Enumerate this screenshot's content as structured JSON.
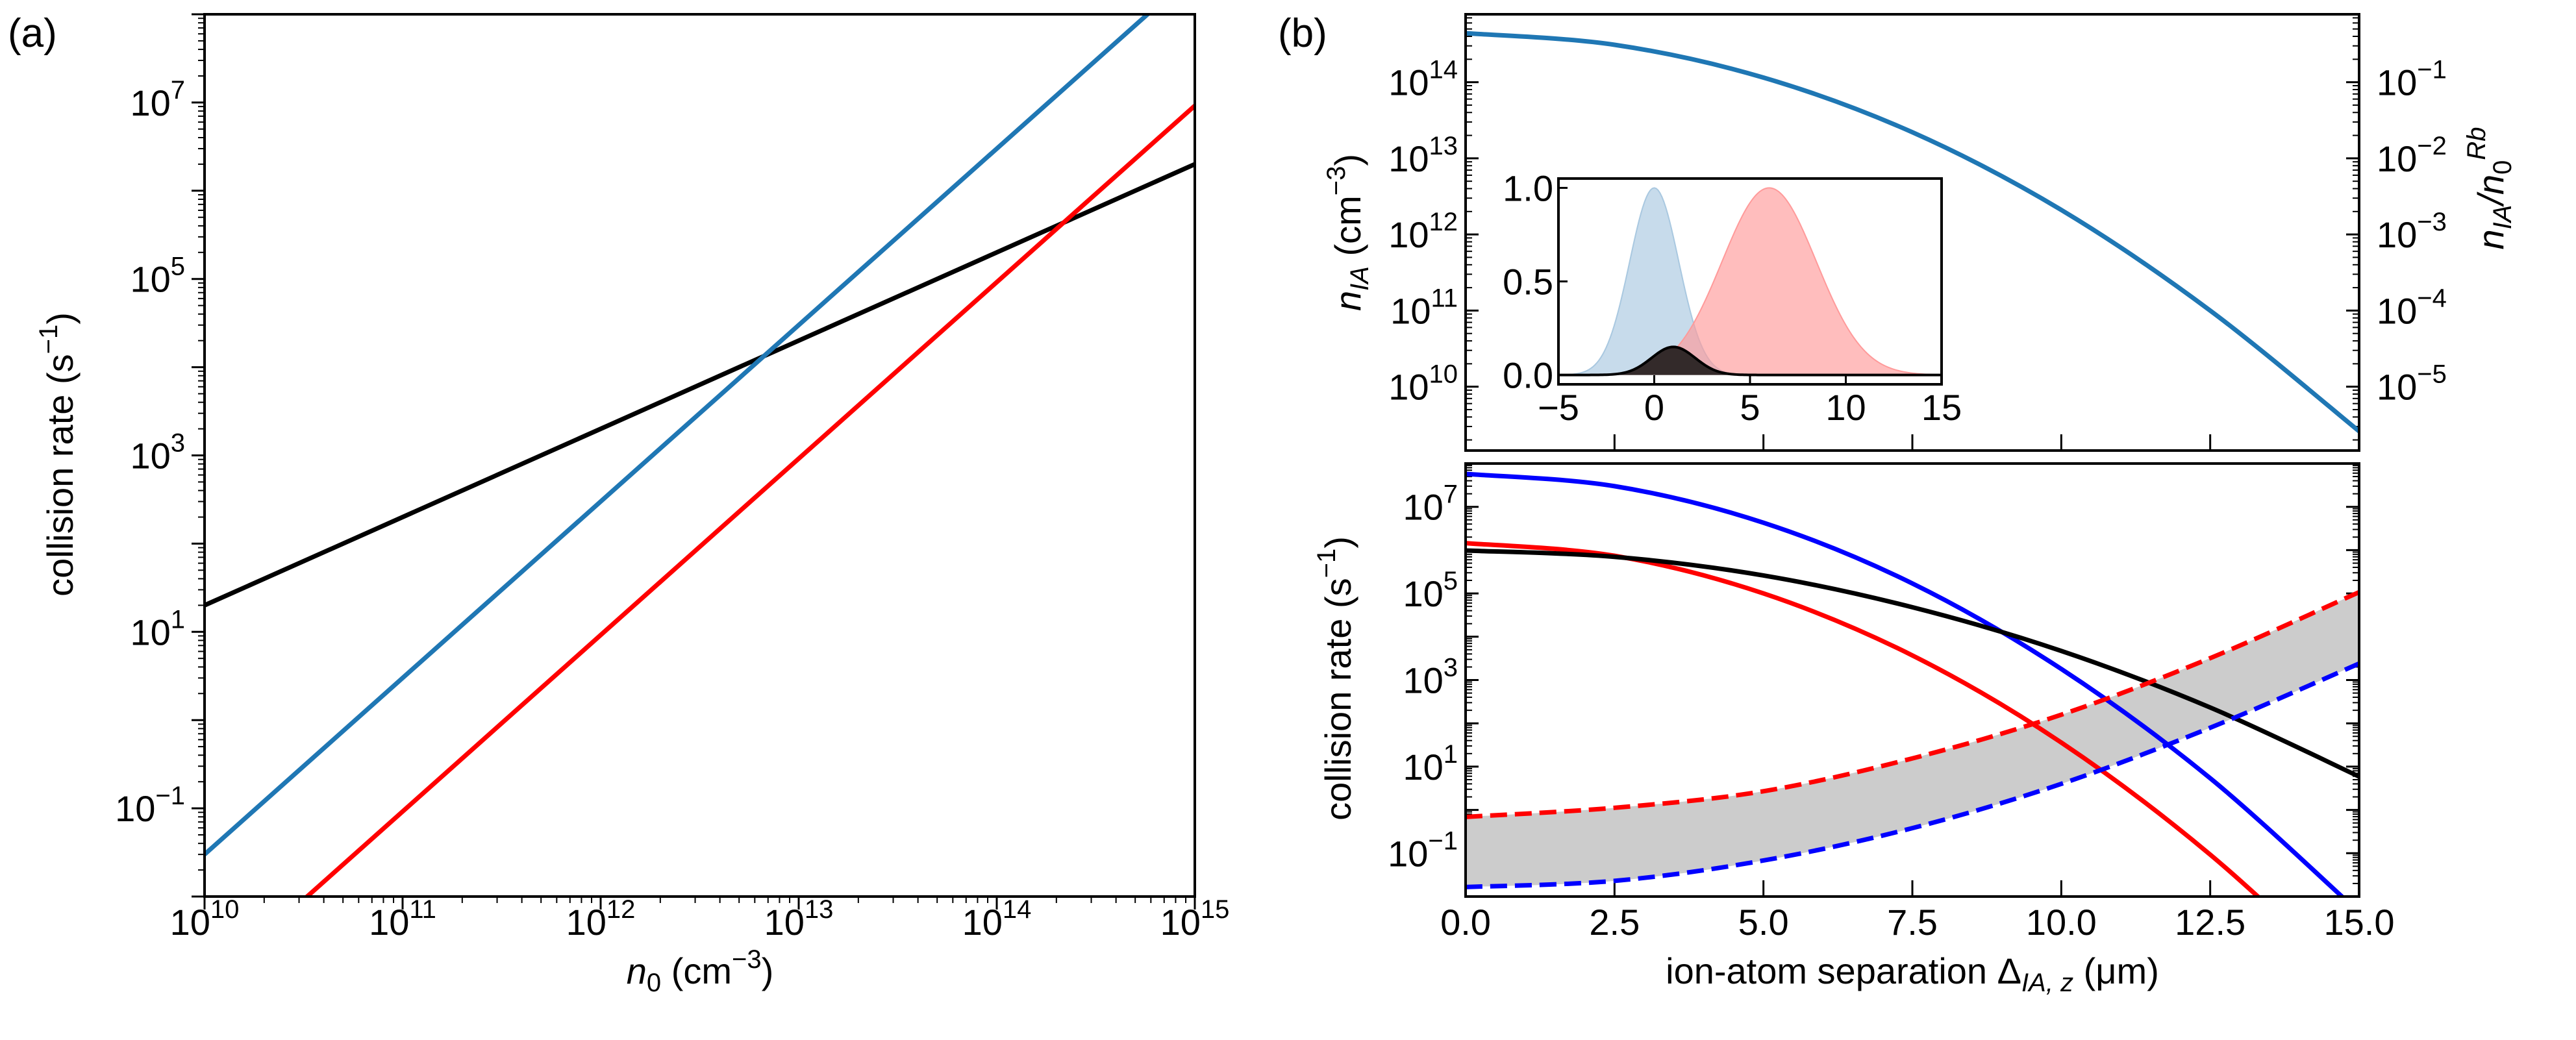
{
  "panel_labels": {
    "a": "(a)",
    "b": "(b)"
  },
  "labels": {
    "a_xlabel": [
      "n",
      "0",
      " (cm",
      "−3",
      ")"
    ],
    "a_ylabel": [
      "collision rate (s",
      "−1",
      ")"
    ],
    "b_top_ylabel": [
      "n",
      "IA",
      " (cm",
      "−3",
      ")"
    ],
    "b_top_ylabel_right": [
      "n",
      "IA",
      "/n",
      "0",
      "Rb"
    ],
    "b_bottom_ylabel": [
      "collision rate (s",
      "−1",
      ")"
    ],
    "b_bottom_xlabel": [
      "ion-atom separation Δ",
      "IA, z",
      "  (μm)"
    ]
  },
  "chart_data": [
    {
      "id": "a",
      "type": "line",
      "title": "",
      "xlabel": "n0 (cm−3)",
      "ylabel": "collision rate (s−1)",
      "xscale": "log",
      "yscale": "log",
      "xlim": [
        10000000000.0,
        1000000000000000.0
      ],
      "ylim": [
        0.01,
        100000000.0
      ],
      "xtick_exponents": [
        10,
        11,
        12,
        13,
        14,
        15
      ],
      "ytick_exponents": [
        -1,
        1,
        3,
        5,
        7
      ],
      "series": [
        {
          "name": "black",
          "color": "#000000",
          "x": [
            10000000000.0,
            1000000000000000.0
          ],
          "y": [
            20,
            2000000.0
          ]
        },
        {
          "name": "blue",
          "color": "#1f77b4",
          "x": [
            10000000000.0,
            1000000000000000.0
          ],
          "y": [
            0.03,
            300000000.0
          ]
        },
        {
          "name": "red",
          "color": "#ff0000",
          "x": [
            10000000000.0,
            1000000000000000.0
          ],
          "y": [
            0.00092,
            9200000.0
          ]
        }
      ]
    },
    {
      "id": "b_top",
      "type": "line",
      "ylabel": "n_IA (cm−3)",
      "ylabel_right": "n_IA/n0^Rb",
      "xscale": "linear",
      "yscale": "log",
      "xlim": [
        0,
        15
      ],
      "ylim": [
        1450000000.0,
        780000000000000.0
      ],
      "ytick_exponents": [
        10,
        11,
        12,
        13,
        14
      ],
      "ytick_right_exponents": [
        -5,
        -4,
        -3,
        -2,
        -1
      ],
      "right_axis_scale": 1e-15,
      "xticks": [
        2.5,
        5,
        7.5,
        10,
        12.5
      ],
      "series": [
        {
          "name": "n_IA",
          "color": "#1f77b4",
          "x": [
            0,
            2.5,
            5,
            7.5,
            10,
            12.5,
            15
          ],
          "y": [
            440000000000000.0,
            310000000000000.0,
            115000000000000.0,
            22000000000000.0,
            2100000000000.0,
            100000000000.0,
            2600000000.0
          ]
        }
      ],
      "inset": {
        "type": "area",
        "xlim": [
          -5,
          15
        ],
        "ylim": [
          -0.05,
          1.05
        ],
        "xticks": [
          -5,
          0,
          5,
          10,
          15
        ],
        "yticks": [
          "0.0",
          "0.5",
          "1.0"
        ],
        "series": [
          {
            "name": "ion",
            "color": "#a9c8e0",
            "center": 0,
            "sigma": 1.28,
            "amplitude": 1.0
          },
          {
            "name": "atom",
            "color": "#ff9a9a",
            "center": 6,
            "sigma": 2.46,
            "amplitude": 1.0
          },
          {
            "name": "overlap",
            "color": "#332a2a",
            "center": 1.0,
            "sigma": 1.14,
            "amplitude": 0.15
          }
        ]
      }
    },
    {
      "id": "b_bottom",
      "type": "line",
      "xlabel": "ion-atom separation Δ_IA,z (μm)",
      "ylabel": "collision rate (s−1)",
      "xscale": "linear",
      "yscale": "log",
      "xlim": [
        0,
        15
      ],
      "ylim": [
        0.01,
        100000000.0
      ],
      "xticks": [
        "0.0",
        "2.5",
        "5.0",
        "7.5",
        "10.0",
        "12.5",
        "15.0"
      ],
      "ytick_exponents": [
        -1,
        1,
        3,
        5,
        7
      ],
      "x": [
        0,
        2.5,
        5,
        7.5,
        10,
        12.5,
        15
      ],
      "series": [
        {
          "name": "blue-solid",
          "color": "#0000ff",
          "dashed": false,
          "y": [
            57500000.0,
            30000000.0,
            4300000.0,
            170000.0,
            1800.0,
            5.4,
            0.0043
          ]
        },
        {
          "name": "red-solid",
          "color": "#ff0000",
          "dashed": false,
          "y": [
            1450000.0,
            740000.0,
            100000.0,
            3700.0,
            36,
            0.093,
            6.5e-05
          ]
        },
        {
          "name": "black-solid",
          "color": "#000000",
          "dashed": false,
          "y": [
            980000.0,
            700000.0,
            260000.0,
            48000.0,
            4700.0,
            232,
            5.9
          ]
        },
        {
          "name": "red-dashed",
          "color": "#ff0000",
          "dashed": true,
          "y": [
            0.69,
            1.12,
            2.7,
            15.5,
            158,
            3200.0,
            107000.0
          ]
        },
        {
          "name": "blue-dashed",
          "color": "#0000ff",
          "dashed": true,
          "y": [
            0.0166,
            0.023,
            0.068,
            0.38,
            4.0,
            79,
            2400.0
          ]
        }
      ],
      "fill_between": {
        "upper": "red-dashed",
        "lower": "blue-dashed",
        "color": "#cccccc"
      }
    }
  ]
}
